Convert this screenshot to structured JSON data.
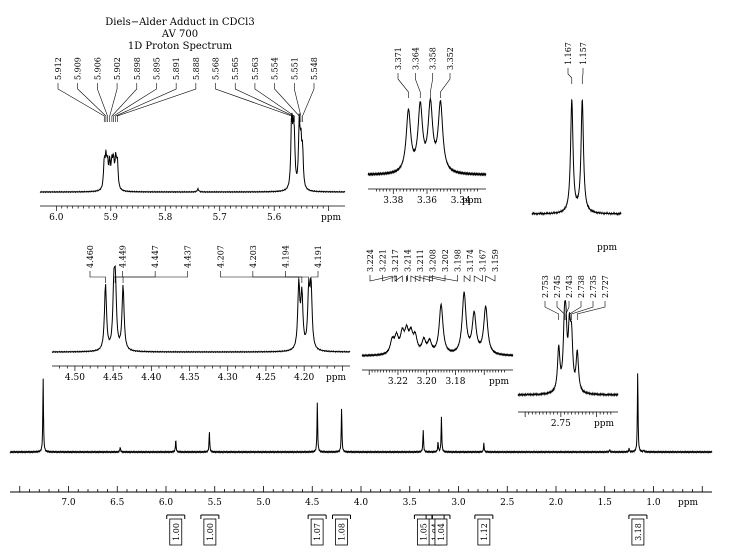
{
  "chart_data": {
    "type": "line",
    "title": "Diels−Alder Adduct in CDCl3",
    "subtitle_lines": [
      "AV 700",
      "1D Proton Spectrum"
    ],
    "main": {
      "xlabel": "ppm",
      "xlim": [
        7.6,
        0.4
      ],
      "ticks": [
        "7.0",
        "6.5",
        "6.0",
        "5.5",
        "5.0",
        "4.5",
        "4.0",
        "3.5",
        "3.0",
        "2.5",
        "2.0",
        "1.5",
        "1.0"
      ],
      "integrals": [
        {
          "center": 5.9,
          "value": "1.00"
        },
        {
          "center": 5.55,
          "value": "1.00"
        },
        {
          "center": 4.45,
          "value": "1.07"
        },
        {
          "center": 4.2,
          "value": "1.08"
        },
        {
          "center": 3.36,
          "value": "1.05"
        },
        {
          "center": 3.24,
          "value": "1.04"
        },
        {
          "center": 3.18,
          "value": "1.04"
        },
        {
          "center": 2.74,
          "value": "1.12"
        },
        {
          "center": 1.16,
          "value": "3.18"
        }
      ],
      "peaks": [
        {
          "ppm": 7.26,
          "h": 1.2
        },
        {
          "ppm": 6.47,
          "h": 0.08
        },
        {
          "ppm": 5.9,
          "h": 0.2
        },
        {
          "ppm": 5.555,
          "h": 0.33
        },
        {
          "ppm": 4.448,
          "h": 0.8
        },
        {
          "ppm": 4.199,
          "h": 0.72
        },
        {
          "ppm": 3.362,
          "h": 0.36
        },
        {
          "ppm": 3.21,
          "h": 0.16
        },
        {
          "ppm": 3.175,
          "h": 0.56
        },
        {
          "ppm": 2.74,
          "h": 0.14
        },
        {
          "ppm": 1.45,
          "h": 0.04
        },
        {
          "ppm": 1.25,
          "h": 0.06
        },
        {
          "ppm": 1.162,
          "h": 1.3
        },
        {
          "ppm": 1.1,
          "h": 0.03
        }
      ]
    },
    "insets": [
      {
        "id": "olefin",
        "xlabel": "ppm",
        "xlim": [
          6.03,
          5.47
        ],
        "ticks": [
          "6.0",
          "5.9",
          "5.8",
          "5.7",
          "5.6"
        ],
        "peak_labels": [
          "5.912",
          "5.909",
          "5.906",
          "5.902",
          "5.898",
          "5.895",
          "5.891",
          "5.888",
          "5.568",
          "5.565",
          "5.563",
          "5.554",
          "5.551",
          "5.548"
        ],
        "peaks": [
          {
            "ppm": 5.912,
            "h": 0.36
          },
          {
            "ppm": 5.909,
            "h": 0.38
          },
          {
            "ppm": 5.906,
            "h": 0.32
          },
          {
            "ppm": 5.902,
            "h": 0.34
          },
          {
            "ppm": 5.898,
            "h": 0.33
          },
          {
            "ppm": 5.895,
            "h": 0.35
          },
          {
            "ppm": 5.891,
            "h": 0.38
          },
          {
            "ppm": 5.888,
            "h": 0.36
          },
          {
            "ppm": 5.74,
            "h": 0.04
          },
          {
            "ppm": 5.568,
            "h": 0.9
          },
          {
            "ppm": 5.565,
            "h": 0.6
          },
          {
            "ppm": 5.563,
            "h": 0.5
          },
          {
            "ppm": 5.554,
            "h": 0.85
          },
          {
            "ppm": 5.551,
            "h": 0.55
          },
          {
            "ppm": 5.548,
            "h": 0.5
          }
        ]
      },
      {
        "id": "h3",
        "xlabel": "ppm",
        "xlim": [
          3.395,
          3.325
        ],
        "ticks": [
          "3.38",
          "3.36",
          "3.34"
        ],
        "peak_labels": [
          "3.371",
          "3.364",
          "3.358",
          "3.352"
        ],
        "peaks": [
          {
            "ppm": 3.371,
            "h": 0.85
          },
          {
            "ppm": 3.364,
            "h": 0.9
          },
          {
            "ppm": 3.358,
            "h": 0.92
          },
          {
            "ppm": 3.352,
            "h": 0.95
          }
        ]
      },
      {
        "id": "methyl",
        "xlabel": "ppm",
        "xlim": [
          1.205,
          1.12
        ],
        "ticks": [],
        "peak_labels": [
          "1.167",
          "1.157"
        ],
        "peaks": [
          {
            "ppm": 1.167,
            "h": 1.0
          },
          {
            "ppm": 1.157,
            "h": 1.0
          }
        ]
      },
      {
        "id": "bridge",
        "xlabel": "ppm",
        "xlim": [
          4.53,
          4.14
        ],
        "ticks": [
          "4.50",
          "4.45",
          "4.40",
          "4.35",
          "4.30",
          "4.25",
          "4.20"
        ],
        "peak_labels": [
          "4.460",
          "4.449",
          "4.447",
          "4.437",
          "4.207",
          "4.203",
          "4.194",
          "4.191"
        ],
        "peaks": [
          {
            "ppm": 4.46,
            "h": 0.92
          },
          {
            "ppm": 4.449,
            "h": 0.8
          },
          {
            "ppm": 4.447,
            "h": 0.8
          },
          {
            "ppm": 4.437,
            "h": 0.9
          },
          {
            "ppm": 4.207,
            "h": 0.9
          },
          {
            "ppm": 4.203,
            "h": 0.75
          },
          {
            "ppm": 4.194,
            "h": 0.78
          },
          {
            "ppm": 4.191,
            "h": 0.85
          }
        ]
      },
      {
        "id": "cluster",
        "xlabel": "ppm",
        "xlim": [
          3.245,
          3.14
        ],
        "ticks": [
          "3.22",
          "3.20",
          "3.18"
        ],
        "peak_labels": [
          "3.224",
          "3.221",
          "3.217",
          "3.214",
          "3.211",
          "3.208",
          "3.202",
          "3.198",
          "3.174",
          "3.167",
          "3.159"
        ],
        "peaks": [
          {
            "ppm": 3.224,
            "h": 0.2
          },
          {
            "ppm": 3.221,
            "h": 0.24
          },
          {
            "ppm": 3.217,
            "h": 0.28
          },
          {
            "ppm": 3.214,
            "h": 0.3
          },
          {
            "ppm": 3.211,
            "h": 0.27
          },
          {
            "ppm": 3.208,
            "h": 0.24
          },
          {
            "ppm": 3.202,
            "h": 0.2
          },
          {
            "ppm": 3.198,
            "h": 0.18
          },
          {
            "ppm": 3.19,
            "h": 0.75
          },
          {
            "ppm": 3.174,
            "h": 0.92
          },
          {
            "ppm": 3.167,
            "h": 0.6
          },
          {
            "ppm": 3.159,
            "h": 0.72
          }
        ]
      },
      {
        "id": "h2",
        "xlabel": "ppm",
        "xlim": [
          2.81,
          2.67
        ],
        "ticks": [
          "2.75"
        ],
        "peak_labels": [
          "2.753",
          "2.745",
          "2.743",
          "2.738",
          "2.735",
          "2.727"
        ],
        "peaks": [
          {
            "ppm": 2.753,
            "h": 0.55
          },
          {
            "ppm": 2.745,
            "h": 0.7
          },
          {
            "ppm": 2.743,
            "h": 0.65
          },
          {
            "ppm": 2.738,
            "h": 0.7
          },
          {
            "ppm": 2.735,
            "h": 0.6
          },
          {
            "ppm": 2.727,
            "h": 0.5
          }
        ]
      }
    ]
  }
}
